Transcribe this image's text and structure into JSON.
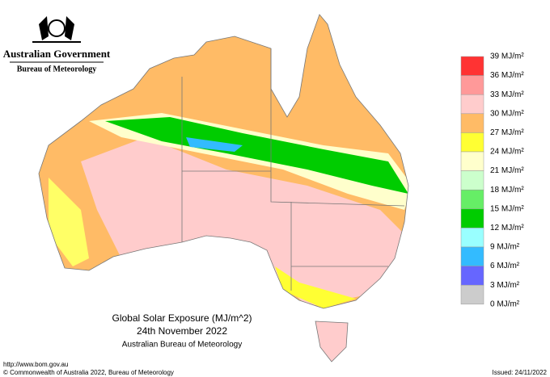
{
  "header": {
    "government": "Australian Government",
    "agency": "Bureau of Meteorology"
  },
  "legend": {
    "labels": [
      "39 MJ/m²",
      "36 MJ/m²",
      "33 MJ/m²",
      "30 MJ/m²",
      "27 MJ/m²",
      "24 MJ/m²",
      "21 MJ/m²",
      "18 MJ/m²",
      "15 MJ/m²",
      "12 MJ/m²",
      "9 MJ/m²",
      "6 MJ/m²",
      "3 MJ/m²",
      "0 MJ/m²"
    ],
    "colors": [
      "#ff3333",
      "#ff9999",
      "#ffcccc",
      "#ffbb66",
      "#ffff33",
      "#ffffcc",
      "#ccffcc",
      "#66ee66",
      "#00cc00",
      "#99ffff",
      "#33bbff",
      "#6666ff",
      "#cccccc"
    ]
  },
  "caption": {
    "title": "Global Solar Exposure (MJ/m^2)",
    "date": "24th November 2022",
    "source": "Australian Bureau of Meteorology"
  },
  "footer": {
    "url": "http://www.bom.gov.au",
    "copyright": "© Commonwealth of Australia 2022, Bureau of Meteorology",
    "issued": "Issued: 24/11/2022"
  }
}
